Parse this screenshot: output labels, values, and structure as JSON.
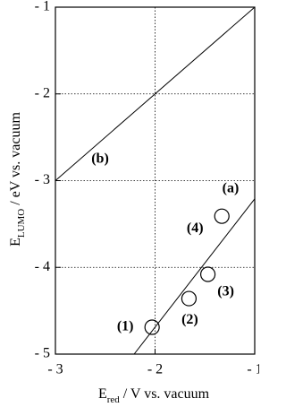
{
  "chart_data": {
    "type": "scatter",
    "xlabel": {
      "main": "E",
      "sub": "red",
      "rest": " / V vs. vacuum"
    },
    "ylabel": {
      "main": "E",
      "sub": "LUMO",
      "rest": " / eV vs. vacuum"
    },
    "xlim": [
      -3,
      -1
    ],
    "ylim": [
      -5,
      -1
    ],
    "xticks": [
      {
        "value": -3,
        "label": "- 3"
      },
      {
        "value": -2,
        "label": "- 2"
      },
      {
        "value": -1,
        "label": "- 1"
      }
    ],
    "yticks": [
      {
        "value": -5,
        "label": "- 5"
      },
      {
        "value": -4,
        "label": "- 4"
      },
      {
        "value": -3,
        "label": "- 3"
      },
      {
        "value": -2,
        "label": "- 2"
      },
      {
        "value": -1,
        "label": "- 1"
      }
    ],
    "grid": true,
    "points": {
      "x": [
        -2.03,
        -1.66,
        -1.47,
        -1.33
      ],
      "y": [
        -4.69,
        -4.36,
        -4.08,
        -3.41
      ],
      "labels": [
        "(1)",
        "(2)",
        "(3)",
        "(4)"
      ]
    },
    "lines": [
      {
        "name": "(a)",
        "x": [
          -2.21,
          -1
        ],
        "y": [
          -5,
          -3.21
        ]
      },
      {
        "name": "(b)",
        "x": [
          -3,
          -1
        ],
        "y": [
          -3,
          -1
        ]
      }
    ]
  }
}
